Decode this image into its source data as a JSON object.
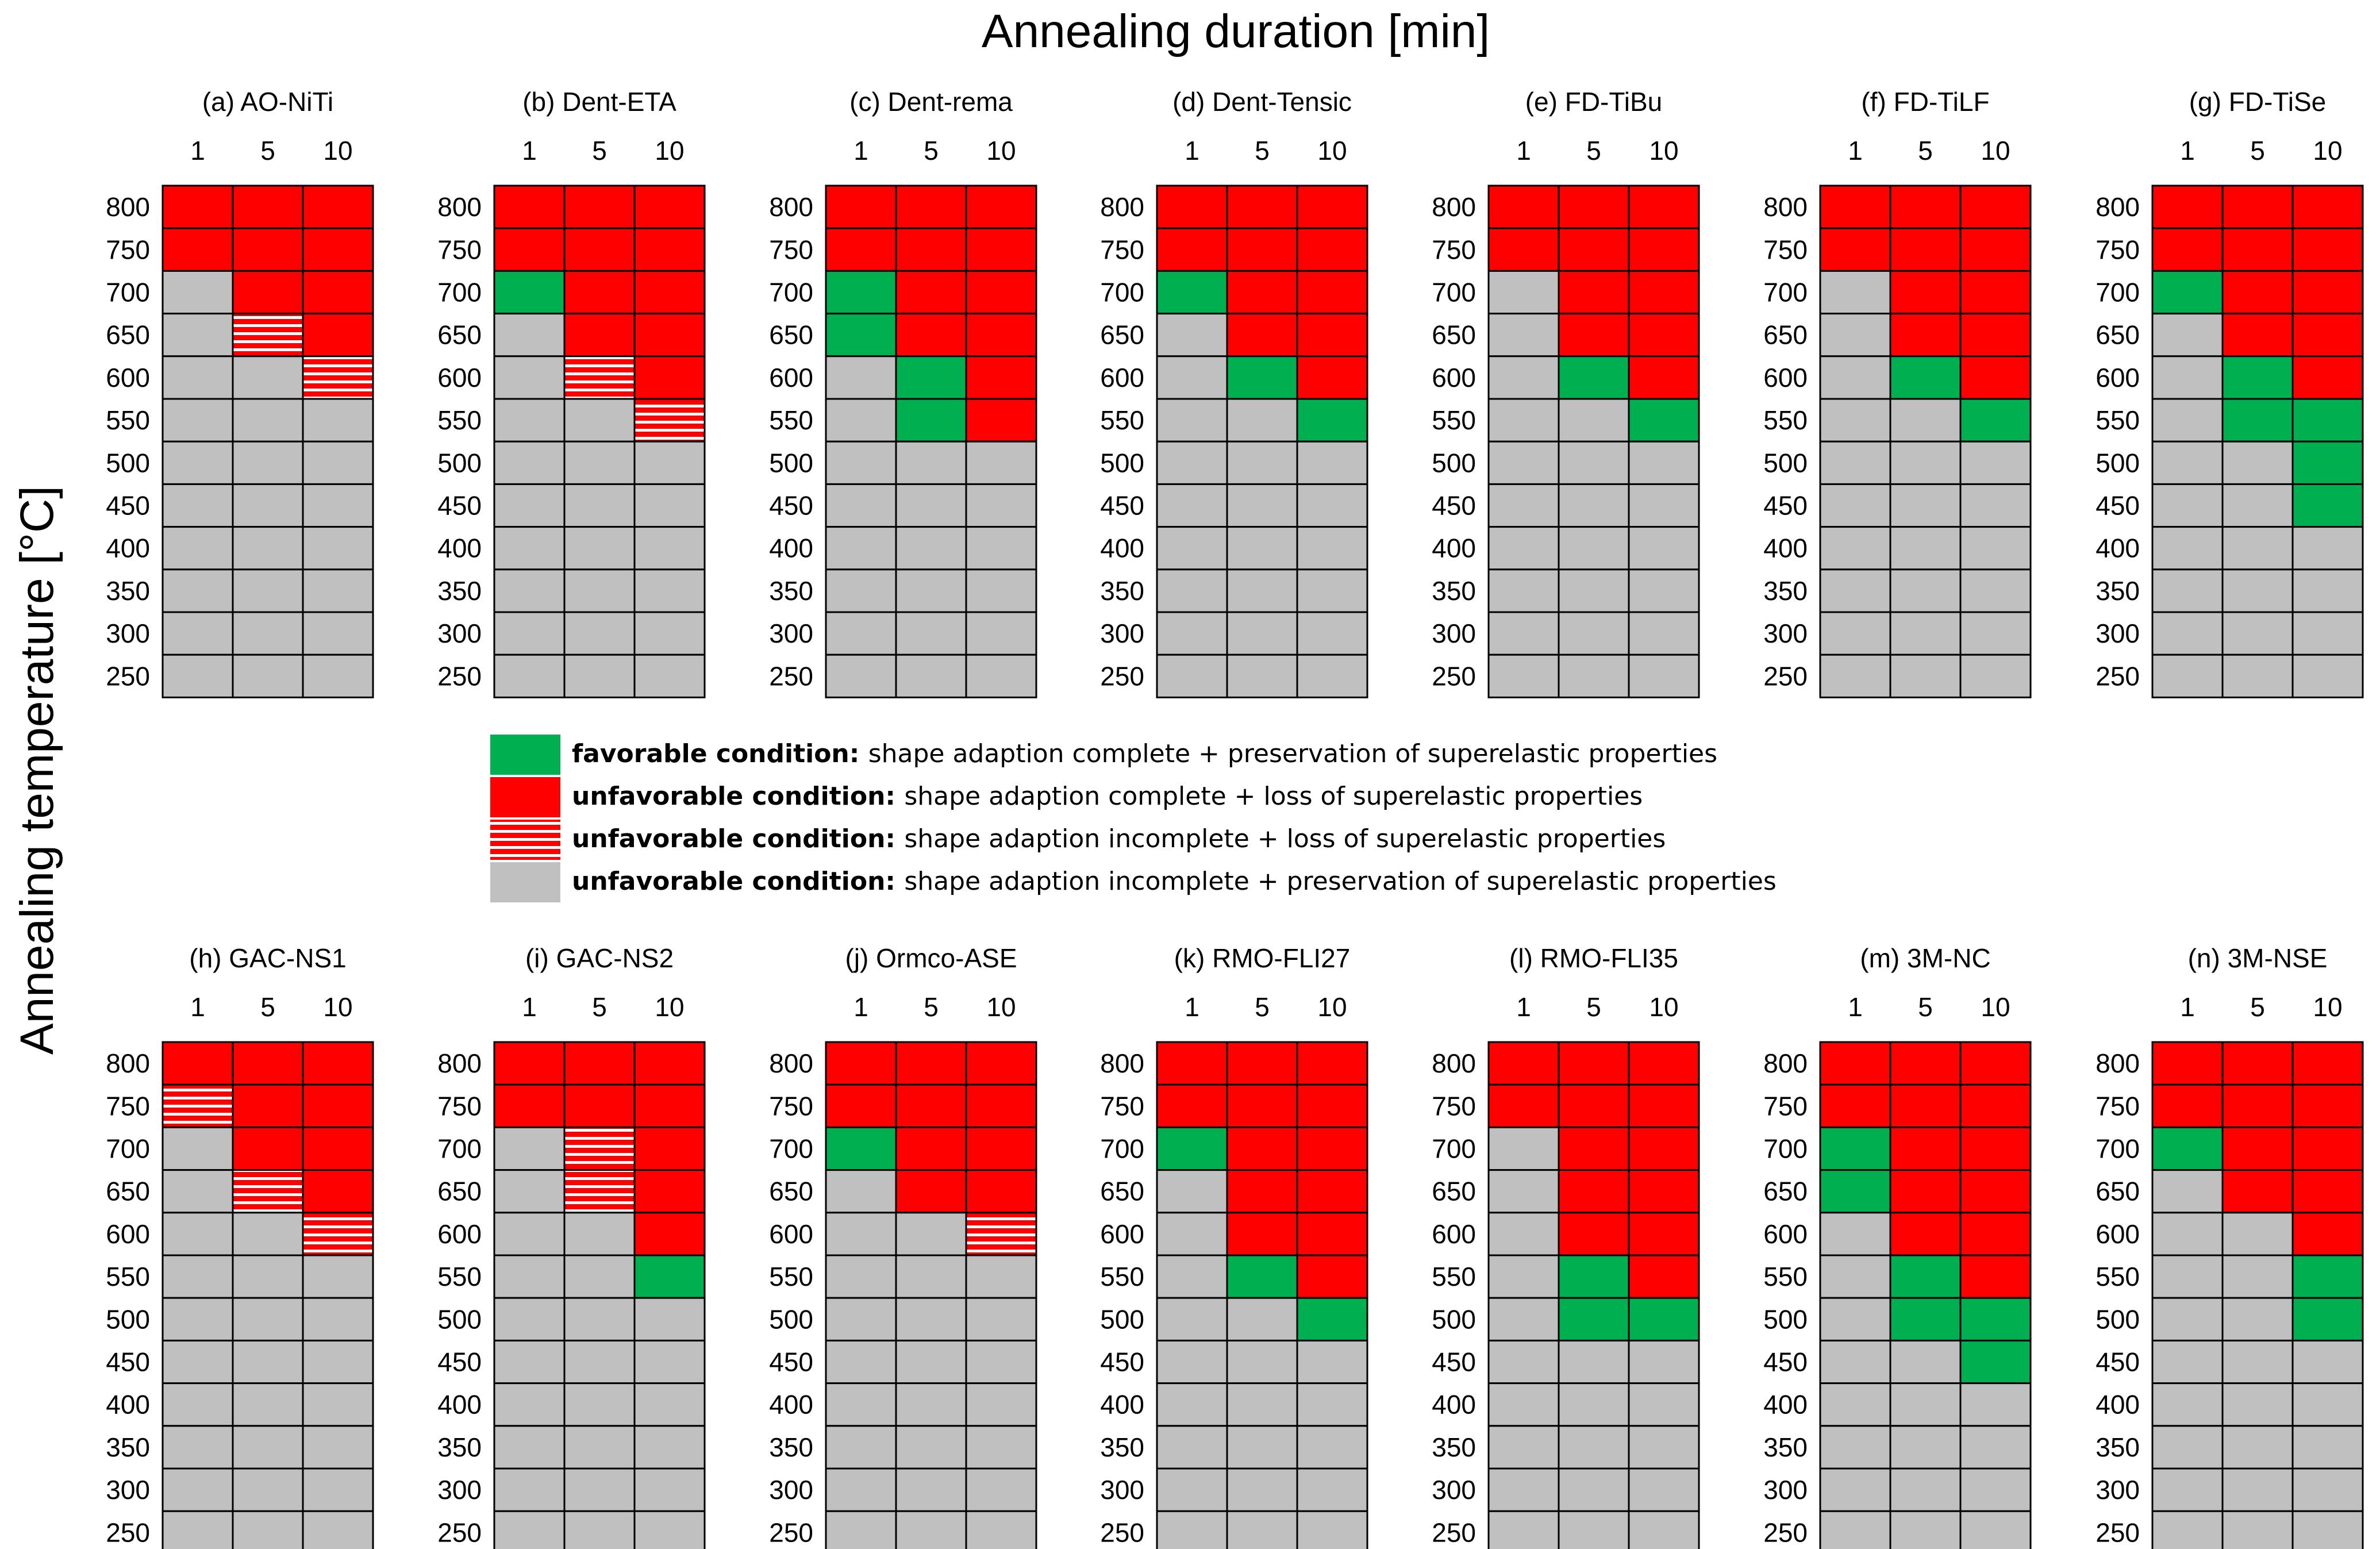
{
  "chart_data": {
    "type": "heatmap",
    "title": "Annealing duration [min]",
    "xlabel": "Annealing duration [min]",
    "ylabel": "Annealing temperature [°C]",
    "x_categories": [
      "1",
      "5",
      "10"
    ],
    "y_categories": [
      "800",
      "750",
      "700",
      "650",
      "600",
      "550",
      "500",
      "450",
      "400",
      "350",
      "300",
      "250"
    ],
    "codes": {
      "G": "favorable: shape adaption complete + preservation of superelastic properties",
      "R": "unfavorable: shape adaption complete + loss of superelastic properties",
      "S": "unfavorable: shape adaption incomplete + loss of superelastic properties",
      "N": "unfavorable: shape adaption incomplete + preservation of superelastic properties"
    },
    "colors": {
      "G": "#00b050",
      "R": "#ff0000",
      "S": "#ff0000",
      "N": "#c0c0c0",
      "stripe": "#ffffff",
      "grid": "#000000"
    },
    "panels": [
      {
        "label": "(a) AO-NiTi",
        "rows": [
          "RRR",
          "RRR",
          "NRR",
          "NSR",
          "NNS",
          "NNN",
          "NNN",
          "NNN",
          "NNN",
          "NNN",
          "NNN",
          "NNN"
        ]
      },
      {
        "label": "(b) Dent-ETA",
        "rows": [
          "RRR",
          "RRR",
          "GRR",
          "NRR",
          "NSR",
          "NNS",
          "NNN",
          "NNN",
          "NNN",
          "NNN",
          "NNN",
          "NNN"
        ]
      },
      {
        "label": "(c) Dent-rema",
        "rows": [
          "RRR",
          "RRR",
          "GRR",
          "GRR",
          "NGR",
          "NGR",
          "NNN",
          "NNN",
          "NNN",
          "NNN",
          "NNN",
          "NNN"
        ]
      },
      {
        "label": "(d) Dent-Tensic",
        "rows": [
          "RRR",
          "RRR",
          "GRR",
          "NRR",
          "NGR",
          "NNG",
          "NNN",
          "NNN",
          "NNN",
          "NNN",
          "NNN",
          "NNN"
        ]
      },
      {
        "label": "(e) FD-TiBu",
        "rows": [
          "RRR",
          "RRR",
          "NRR",
          "NRR",
          "NGR",
          "NNG",
          "NNN",
          "NNN",
          "NNN",
          "NNN",
          "NNN",
          "NNN"
        ]
      },
      {
        "label": "(f) FD-TiLF",
        "rows": [
          "RRR",
          "RRR",
          "NRR",
          "NRR",
          "NGR",
          "NNG",
          "NNN",
          "NNN",
          "NNN",
          "NNN",
          "NNN",
          "NNN"
        ]
      },
      {
        "label": "(g) FD-TiSe",
        "rows": [
          "RRR",
          "RRR",
          "GRR",
          "NRR",
          "NGR",
          "NGG",
          "NNG",
          "NNG",
          "NNN",
          "NNN",
          "NNN",
          "NNN"
        ]
      },
      {
        "label": "(h) GAC-NS1",
        "rows": [
          "RRR",
          "SRR",
          "NRR",
          "NSR",
          "NNS",
          "NNN",
          "NNN",
          "NNN",
          "NNN",
          "NNN",
          "NNN",
          "NNN"
        ]
      },
      {
        "label": "(i) GAC-NS2",
        "rows": [
          "RRR",
          "RRR",
          "NSR",
          "NSR",
          "NNR",
          "NNG",
          "NNN",
          "NNN",
          "NNN",
          "NNN",
          "NNN",
          "NNN"
        ]
      },
      {
        "label": "(j) Ormco-ASE",
        "rows": [
          "RRR",
          "RRR",
          "GRR",
          "NRR",
          "NNS",
          "NNN",
          "NNN",
          "NNN",
          "NNN",
          "NNN",
          "NNN",
          "NNN"
        ]
      },
      {
        "label": "(k) RMO-FLI27",
        "rows": [
          "RRR",
          "RRR",
          "GRR",
          "NRR",
          "NRR",
          "NGR",
          "NNG",
          "NNN",
          "NNN",
          "NNN",
          "NNN",
          "NNN"
        ]
      },
      {
        "label": "(l) RMO-FLI35",
        "rows": [
          "RRR",
          "RRR",
          "NRR",
          "NRR",
          "NRR",
          "NGR",
          "NGG",
          "NNN",
          "NNN",
          "NNN",
          "NNN",
          "NNN"
        ]
      },
      {
        "label": "(m) 3M-NC",
        "rows": [
          "RRR",
          "RRR",
          "GRR",
          "GRR",
          "NRR",
          "NGR",
          "NGG",
          "NNG",
          "NNN",
          "NNN",
          "NNN",
          "NNN"
        ]
      },
      {
        "label": "(n) 3M-NSE",
        "rows": [
          "RRR",
          "RRR",
          "GRR",
          "NRR",
          "NNR",
          "NNG",
          "NNG",
          "NNN",
          "NNN",
          "NNN",
          "NNN",
          "NNN"
        ]
      }
    ]
  },
  "legend": {
    "items": [
      {
        "code": "G",
        "condition": "favorable condition",
        "description": "shape adaption complete + preservation of superelastic properties"
      },
      {
        "code": "R",
        "condition": "unfavorable condition",
        "description": "shape adaption complete + loss of superelastic properties"
      },
      {
        "code": "S",
        "condition": "unfavorable condition",
        "description": "shape adaption incomplete + loss of superelastic properties"
      },
      {
        "code": "N",
        "condition": "unfavorable condition",
        "description": "shape adaption incomplete + preservation of superelastic properties"
      }
    ]
  }
}
